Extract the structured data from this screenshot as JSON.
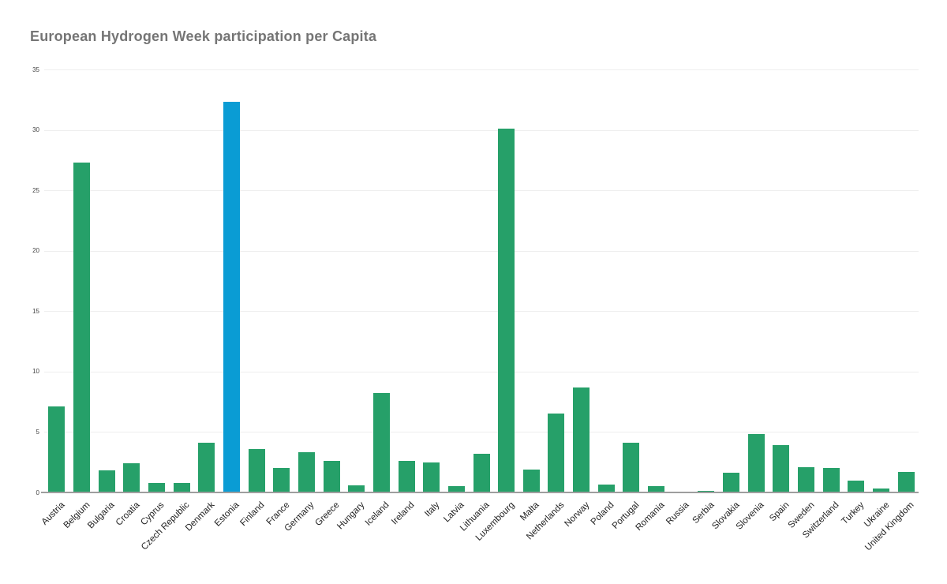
{
  "title": "European Hydrogen Week participation per Capita",
  "chart_data": {
    "type": "bar",
    "title": "European Hydrogen Week participation per Capita",
    "xlabel": "",
    "ylabel": "",
    "ylim": [
      0,
      35
    ],
    "yticks": [
      0,
      5,
      10,
      15,
      20,
      25,
      30,
      35
    ],
    "grid": true,
    "legend_position": "none",
    "categories": [
      "Austria",
      "Belgium",
      "Bulgaria",
      "Croatia",
      "Cyprus",
      "Czech Republic",
      "Denmark",
      "Estonia",
      "Finland",
      "France",
      "Germany",
      "Greece",
      "Hungary",
      "Iceland",
      "Ireland",
      "Italy",
      "Latvia",
      "Lithuania",
      "Luxembourg",
      "Malta",
      "Netherlands",
      "Norway",
      "Poland",
      "Portugal",
      "Romania",
      "Russia",
      "Serbia",
      "Slovakia",
      "Slovenia",
      "Spain",
      "Sweden",
      "Switzerland",
      "Turkey",
      "Ukraine",
      "United Kingdom"
    ],
    "values": [
      7.1,
      27.3,
      1.8,
      2.4,
      0.8,
      0.8,
      4.1,
      32.3,
      3.6,
      2.0,
      3.3,
      2.6,
      0.6,
      8.2,
      2.6,
      2.5,
      0.5,
      3.2,
      30.1,
      1.9,
      6.5,
      8.7,
      0.65,
      4.1,
      0.5,
      0,
      0.15,
      1.6,
      4.8,
      3.9,
      2.1,
      2.0,
      1.0,
      0.3,
      1.7
    ],
    "highlight_category": "Estonia",
    "bar_color": "#26a069",
    "highlight_color": "#0a9cd4"
  },
  "colors": {
    "background": "#ffffff",
    "title": "#757575",
    "gridline": "#eeeeee",
    "axis_line": "#9e9e9e",
    "y_tick_label": "#444444",
    "x_tick_label": "#222222"
  }
}
